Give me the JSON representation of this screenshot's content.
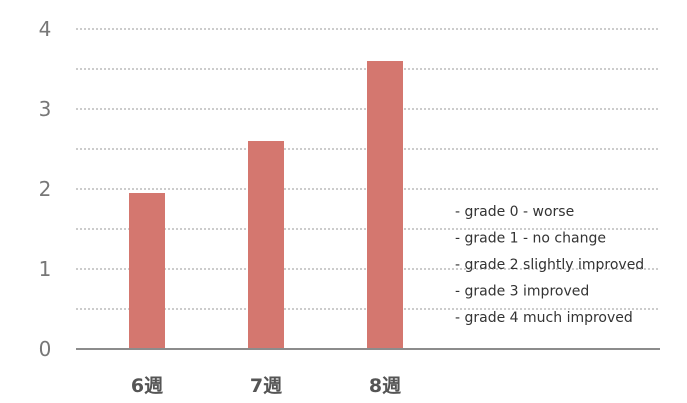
{
  "chart_data": {
    "type": "bar",
    "title": "",
    "xlabel": "",
    "ylabel": "",
    "categories": [
      "6週",
      "7週",
      "8週"
    ],
    "values": [
      1.95,
      2.6,
      3.6
    ],
    "ylim": [
      0,
      4
    ],
    "yticks": [
      0,
      1,
      2,
      3,
      4
    ],
    "grid": true,
    "bar_color": "#d4776f",
    "annotations": [
      "- grade 0 - worse",
      "- grade 1 - no change",
      "- grade 2  slightly improved",
      "- grade 3 improved",
      "- grade 4 much improved"
    ]
  }
}
